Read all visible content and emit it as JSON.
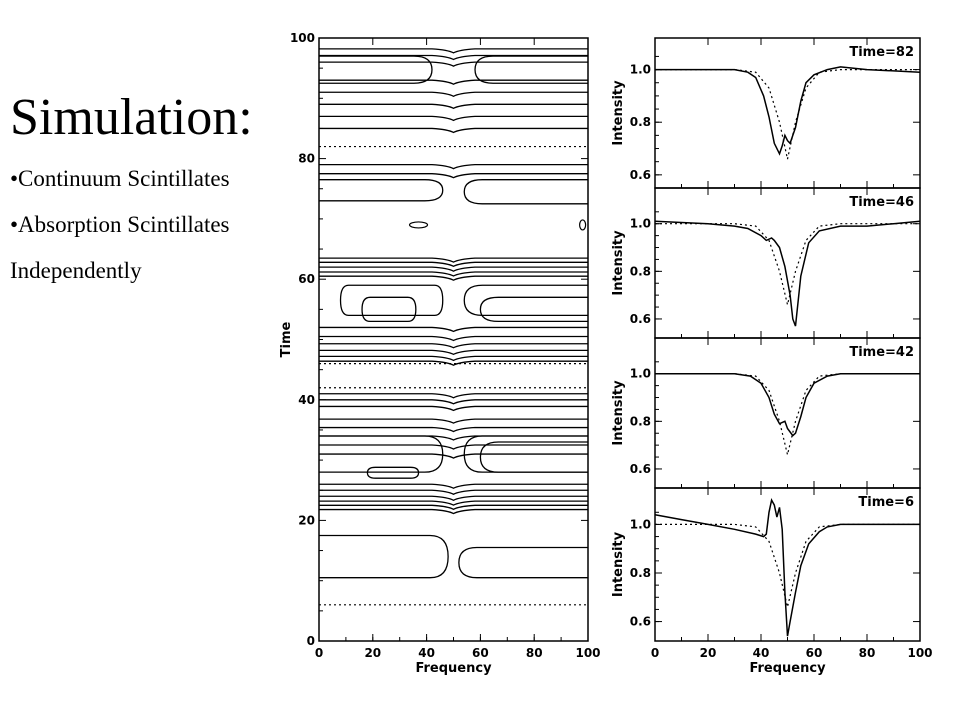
{
  "slide": {
    "title": "Simulation:",
    "bullets": [
      "•Continuum Scintillates",
      "•Absorption Scintillates",
      "Independently"
    ]
  },
  "chart_data": [
    {
      "type": "contour",
      "xlabel": "Frequency",
      "ylabel": "Time",
      "xlim": [
        0,
        100
      ],
      "ylim": [
        0,
        100
      ],
      "xticks": [
        0,
        20,
        40,
        60,
        80,
        100
      ],
      "yticks": [
        0,
        20,
        40,
        60,
        80,
        100
      ],
      "reference_times": [
        6,
        42,
        46,
        82
      ],
      "line_color": "#000000",
      "reference_style": "dotted"
    },
    {
      "type": "line",
      "annotation": "Time=82",
      "xlabel": "",
      "ylabel": "Intensity",
      "xlim": [
        0,
        100
      ],
      "ylim": [
        0.55,
        1.12
      ],
      "yticks": [
        0.6,
        0.8,
        1.0
      ],
      "series": [
        {
          "style": "solid",
          "x": [
            0,
            20,
            30,
            35,
            38,
            41,
            43,
            45,
            47,
            48,
            49,
            50,
            51,
            52,
            53,
            55,
            57,
            60,
            65,
            70,
            80,
            100
          ],
          "y": [
            1.0,
            1.0,
            1.0,
            0.99,
            0.97,
            0.9,
            0.82,
            0.72,
            0.68,
            0.71,
            0.75,
            0.73,
            0.72,
            0.75,
            0.78,
            0.88,
            0.95,
            0.98,
            1.0,
            1.01,
            1.0,
            0.99
          ]
        },
        {
          "style": "dotted",
          "x": [
            0,
            30,
            38,
            43,
            47,
            50,
            53,
            57,
            62,
            70,
            100
          ],
          "y": [
            1.0,
            1.0,
            0.99,
            0.93,
            0.8,
            0.66,
            0.8,
            0.93,
            0.99,
            1.0,
            1.0
          ]
        }
      ]
    },
    {
      "type": "line",
      "annotation": "Time=46",
      "xlabel": "",
      "ylabel": "Intensity",
      "xlim": [
        0,
        100
      ],
      "ylim": [
        0.52,
        1.15
      ],
      "yticks": [
        0.6,
        0.8,
        1.0
      ],
      "series": [
        {
          "style": "solid",
          "x": [
            0,
            20,
            30,
            35,
            40,
            42,
            44,
            45,
            47,
            49,
            51,
            52,
            53,
            55,
            58,
            62,
            70,
            80,
            90,
            100
          ],
          "y": [
            1.01,
            1.0,
            0.99,
            0.98,
            0.95,
            0.93,
            0.94,
            0.93,
            0.9,
            0.82,
            0.7,
            0.6,
            0.57,
            0.78,
            0.92,
            0.97,
            0.99,
            0.99,
            1.0,
            1.01
          ]
        },
        {
          "style": "dotted",
          "x": [
            0,
            30,
            38,
            43,
            47,
            50,
            53,
            57,
            62,
            70,
            100
          ],
          "y": [
            1.0,
            1.0,
            0.99,
            0.93,
            0.8,
            0.66,
            0.8,
            0.93,
            0.99,
            1.0,
            1.0
          ]
        }
      ]
    },
    {
      "type": "line",
      "annotation": "Time=42",
      "xlabel": "",
      "ylabel": "Intensity",
      "xlim": [
        0,
        100
      ],
      "ylim": [
        0.52,
        1.15
      ],
      "yticks": [
        0.6,
        0.8,
        1.0
      ],
      "series": [
        {
          "style": "solid",
          "x": [
            0,
            30,
            36,
            40,
            43,
            45,
            47,
            49,
            50,
            52,
            53,
            55,
            57,
            60,
            65,
            70,
            100
          ],
          "y": [
            1.0,
            1.0,
            0.99,
            0.96,
            0.9,
            0.83,
            0.79,
            0.8,
            0.77,
            0.74,
            0.75,
            0.82,
            0.9,
            0.96,
            0.99,
            1.0,
            1.0
          ]
        },
        {
          "style": "dotted",
          "x": [
            0,
            30,
            38,
            43,
            47,
            50,
            53,
            57,
            62,
            70,
            100
          ],
          "y": [
            1.0,
            1.0,
            0.99,
            0.93,
            0.8,
            0.66,
            0.8,
            0.93,
            0.99,
            1.0,
            1.0
          ]
        }
      ]
    },
    {
      "type": "line",
      "annotation": "Time=6",
      "xlabel": "Frequency",
      "ylabel": "Intensity",
      "xlim": [
        0,
        100
      ],
      "ylim": [
        0.52,
        1.15
      ],
      "xticks": [
        0,
        20,
        40,
        60,
        80,
        100
      ],
      "yticks": [
        0.6,
        0.8,
        1.0
      ],
      "series": [
        {
          "style": "solid",
          "x": [
            0,
            10,
            20,
            30,
            38,
            41,
            42,
            43,
            44,
            45,
            46,
            47,
            48,
            49,
            50,
            51,
            53,
            55,
            58,
            62,
            65,
            70,
            80,
            100
          ],
          "y": [
            1.04,
            1.02,
            1.0,
            0.98,
            0.96,
            0.95,
            0.96,
            1.05,
            1.1,
            1.08,
            1.03,
            1.07,
            0.98,
            0.72,
            0.54,
            0.6,
            0.72,
            0.83,
            0.92,
            0.97,
            0.99,
            1.0,
            1.0,
            1.0
          ]
        },
        {
          "style": "dotted",
          "x": [
            0,
            30,
            38,
            43,
            47,
            50,
            53,
            57,
            62,
            70,
            100
          ],
          "y": [
            1.0,
            1.0,
            0.99,
            0.93,
            0.8,
            0.66,
            0.8,
            0.93,
            0.99,
            1.0,
            1.0
          ]
        }
      ]
    }
  ]
}
